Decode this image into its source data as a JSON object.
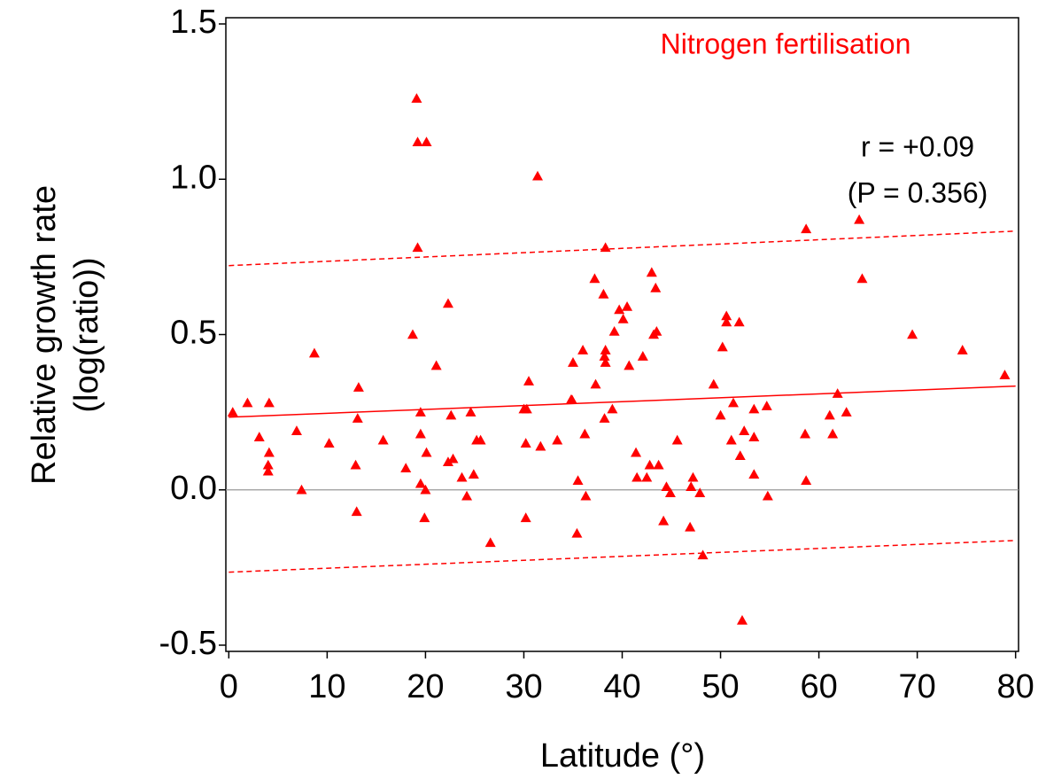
{
  "chart_data": {
    "type": "scatter",
    "annotations": [
      "Nitrogen fertilisation",
      "r = +0.09",
      "(P = 0.356)"
    ],
    "xlabel": "Latitude (°)",
    "ylabel": [
      "Relative growth rate",
      "(log(ratio))"
    ],
    "color": "#ff0000",
    "x": [
      0.4,
      1.9,
      3.1,
      4.1,
      4.1,
      4.0,
      4.0,
      6.9,
      7.4,
      8.7,
      10.2,
      13.2,
      13.1,
      12.9,
      13.0,
      15.7,
      18.0,
      18.7,
      19.1,
      19.2,
      20.1,
      19.2,
      19.5,
      19.5,
      19.5,
      20.0,
      20.1,
      19.9,
      21.1,
      22.3,
      22.3,
      22.6,
      22.8,
      23.7,
      24.2,
      24.6,
      24.9,
      25.2,
      25.6,
      26.6,
      30.0,
      30.3,
      30.5,
      30.2,
      30.2,
      31.4,
      31.7,
      33.4,
      34.9,
      34.8,
      35.0,
      35.4,
      35.5,
      36.0,
      36.2,
      36.3,
      37.2,
      37.3,
      38.1,
      38.3,
      38.3,
      38.2,
      38.3,
      38.2,
      39.0,
      39.2,
      39.7,
      40.1,
      40.5,
      40.7,
      41.4,
      41.5,
      42.1,
      42.5,
      42.8,
      43.0,
      43.4,
      43.2,
      43.5,
      43.7,
      44.2,
      44.5,
      44.9,
      45.6,
      46.9,
      47.2,
      47.0,
      47.9,
      48.2,
      49.3,
      50.0,
      50.2,
      50.6,
      50.6,
      51.1,
      51.3,
      51.9,
      52.0,
      52.2,
      52.4,
      53.4,
      53.4,
      53.4,
      54.7,
      54.8,
      58.7,
      58.6,
      58.7,
      61.1,
      61.4,
      61.9,
      62.8,
      64.1,
      64.4,
      69.5,
      74.6,
      78.9
    ],
    "values": [
      0.25,
      0.28,
      0.17,
      0.28,
      0.12,
      0.08,
      0.06,
      0.19,
      0.0,
      0.44,
      0.15,
      0.33,
      0.23,
      0.08,
      -0.07,
      0.16,
      0.07,
      0.5,
      1.26,
      1.12,
      1.12,
      0.78,
      0.25,
      0.18,
      0.02,
      0.0,
      0.12,
      -0.09,
      0.4,
      0.6,
      0.09,
      0.24,
      0.1,
      0.04,
      -0.02,
      0.25,
      0.05,
      0.16,
      0.16,
      -0.17,
      0.26,
      0.26,
      0.35,
      0.15,
      -0.09,
      1.01,
      0.14,
      0.16,
      0.29,
      0.29,
      0.41,
      -0.14,
      0.03,
      0.45,
      0.18,
      -0.02,
      0.68,
      0.34,
      0.63,
      0.78,
      0.45,
      0.43,
      0.41,
      0.23,
      0.26,
      0.51,
      0.58,
      0.55,
      0.59,
      0.4,
      0.12,
      0.04,
      0.43,
      0.04,
      0.08,
      0.7,
      0.65,
      0.5,
      0.51,
      0.08,
      -0.1,
      0.01,
      -0.01,
      0.16,
      -0.12,
      0.04,
      0.01,
      -0.01,
      -0.21,
      0.34,
      0.24,
      0.46,
      0.56,
      0.54,
      0.16,
      0.28,
      0.54,
      0.11,
      -0.42,
      0.19,
      0.26,
      0.05,
      0.17,
      0.27,
      -0.02,
      0.84,
      0.18,
      0.03,
      0.24,
      0.18,
      0.31,
      0.25,
      0.87,
      0.68,
      0.5,
      0.45,
      0.37
    ],
    "fit": {
      "x": [
        0,
        80
      ],
      "values": [
        0.234,
        0.334
      ],
      "style": "solid"
    },
    "ci_upper": {
      "x": [
        0,
        80
      ],
      "values": [
        0.722,
        0.833
      ],
      "style": "dashed"
    },
    "ci_lower": {
      "x": [
        0,
        80
      ],
      "values": [
        -0.265,
        -0.163
      ],
      "style": "dashed"
    },
    "hline": 0,
    "xlim": [
      -0.3,
      80.3
    ],
    "ylim": [
      -0.52,
      1.52
    ],
    "xticks": [
      0,
      10,
      20,
      30,
      40,
      50,
      60,
      70,
      80
    ],
    "yticks": [
      {
        "value": -0.5,
        "label": "-0.5"
      },
      {
        "value": 0,
        "label": "0.0"
      },
      0.5,
      {
        "value": 1,
        "label": "1.0"
      },
      1.5
    ]
  }
}
